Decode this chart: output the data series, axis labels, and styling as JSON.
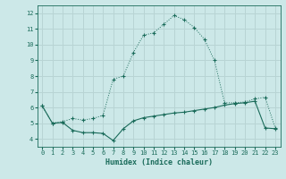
{
  "xlabel": "Humidex (Indice chaleur)",
  "bg_color": "#cce8e8",
  "grid_color": "#b8d4d4",
  "line_color": "#1a6b5a",
  "xlim": [
    -0.5,
    23.5
  ],
  "ylim": [
    3.5,
    12.5
  ],
  "xticks": [
    0,
    1,
    2,
    3,
    4,
    5,
    6,
    7,
    8,
    9,
    10,
    11,
    12,
    13,
    14,
    15,
    16,
    17,
    18,
    19,
    20,
    21,
    22,
    23
  ],
  "yticks": [
    4,
    5,
    6,
    7,
    8,
    9,
    10,
    11,
    12
  ],
  "curve1_x": [
    0,
    1,
    2,
    3,
    4,
    5,
    6,
    7,
    8,
    9,
    10,
    11,
    12,
    13,
    14,
    15,
    16,
    17,
    18,
    19,
    20,
    21,
    22,
    23
  ],
  "curve1_y": [
    6.1,
    5.0,
    5.1,
    5.3,
    5.2,
    5.3,
    5.5,
    7.8,
    8.0,
    9.5,
    10.6,
    10.75,
    11.3,
    11.85,
    11.6,
    11.1,
    10.35,
    9.0,
    6.3,
    6.3,
    6.35,
    6.55,
    6.65,
    4.7
  ],
  "curve2_x": [
    0,
    1,
    2,
    3,
    4,
    5,
    6,
    7,
    8,
    9,
    10,
    11,
    12,
    13,
    14,
    15,
    16,
    17,
    18,
    19,
    20,
    21,
    22,
    23
  ],
  "curve2_y": [
    6.1,
    5.0,
    5.05,
    4.55,
    4.4,
    4.4,
    4.35,
    3.9,
    4.65,
    5.15,
    5.35,
    5.45,
    5.55,
    5.65,
    5.7,
    5.8,
    5.9,
    6.0,
    6.15,
    6.25,
    6.3,
    6.4,
    4.7,
    4.65
  ]
}
